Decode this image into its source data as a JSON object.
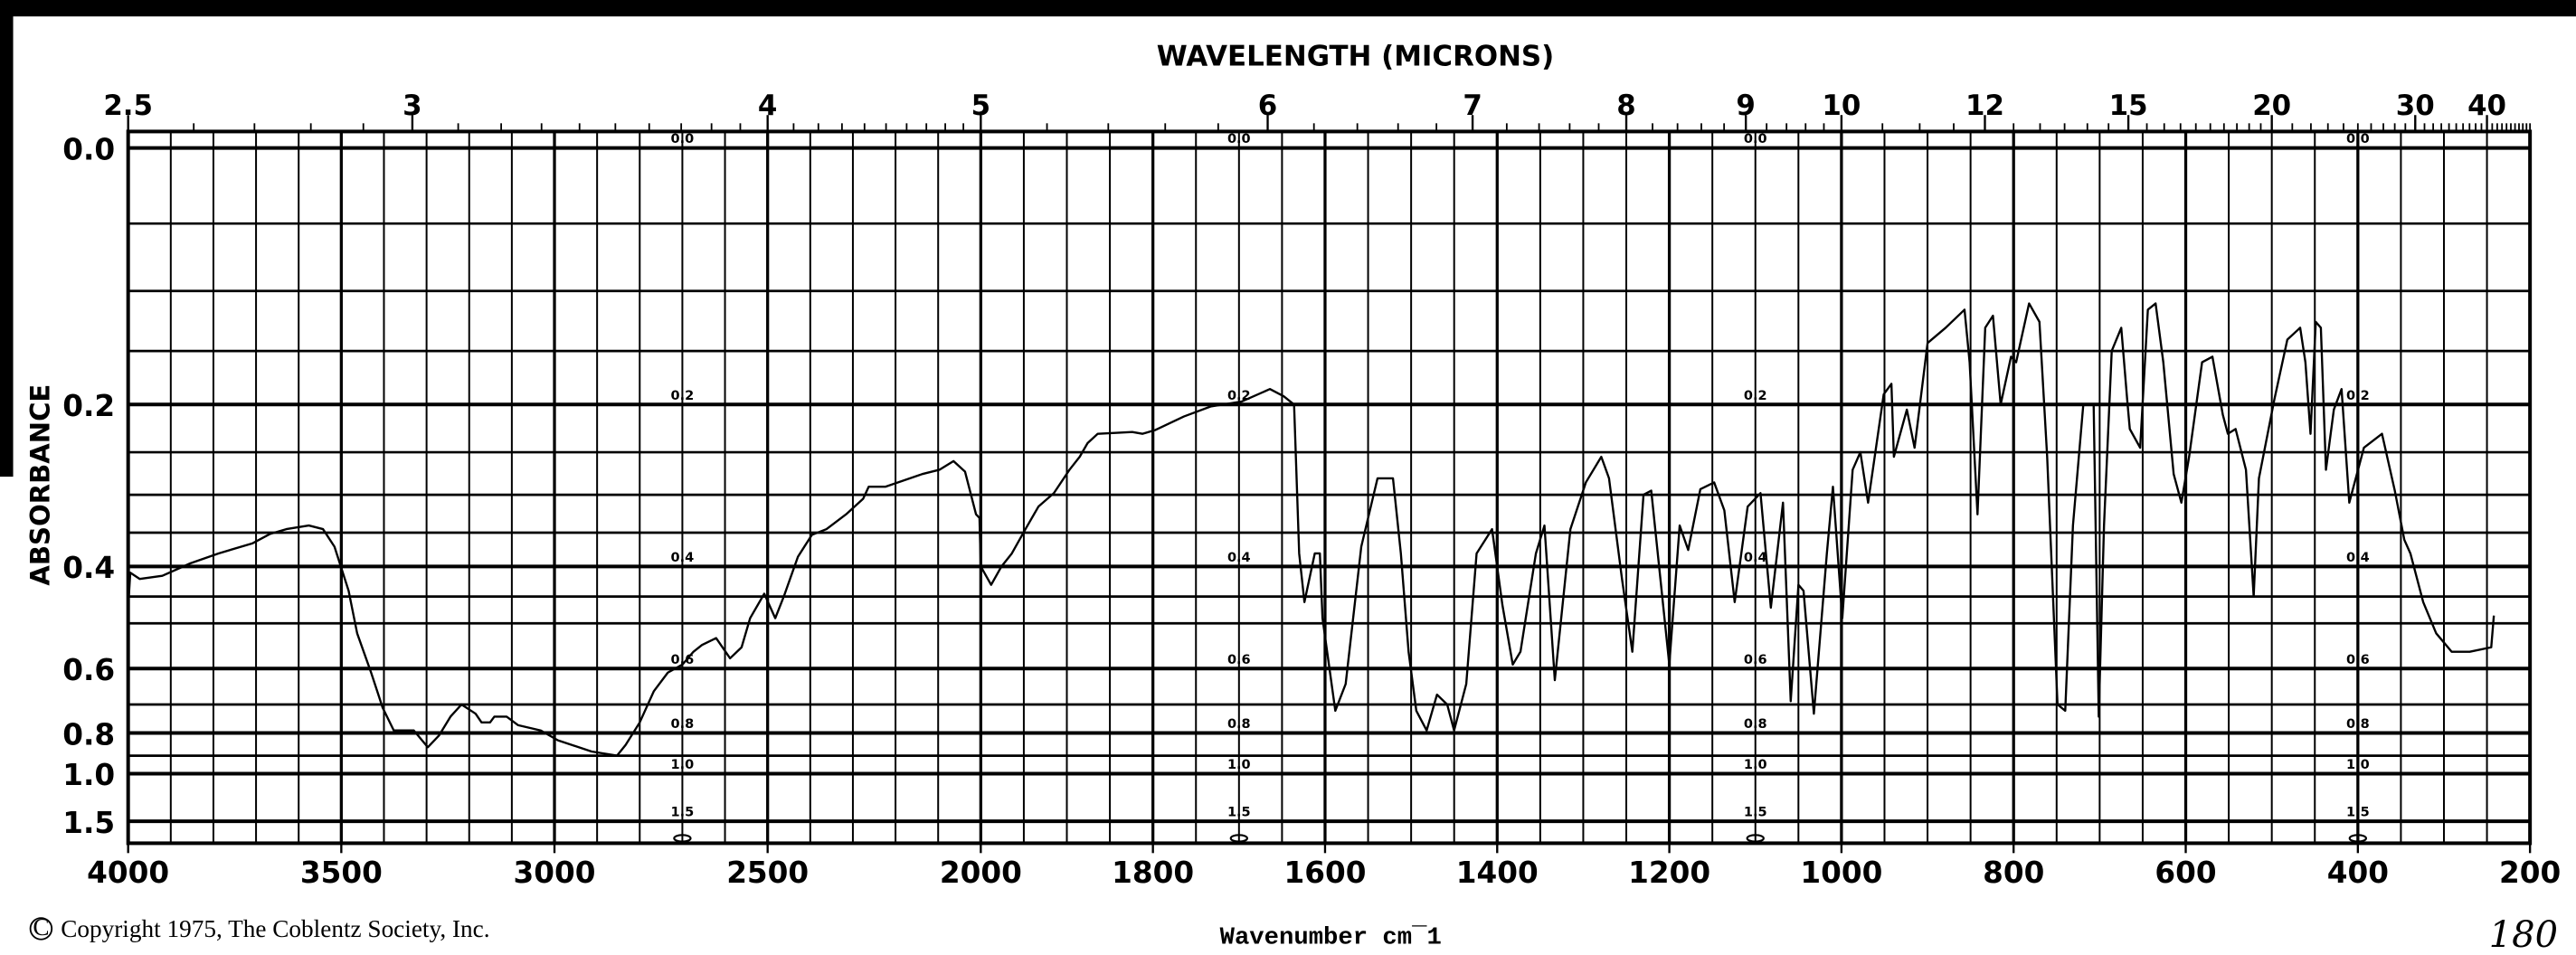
{
  "chart_data": {
    "type": "line",
    "title": "WAVELENGTH (MICRONS)",
    "xlabel": "Wavenumber cm¯1",
    "ylabel": "ABSORBANCE",
    "xlim": [
      4000,
      200
    ],
    "ylim": [
      0.0,
      1.5
    ],
    "grid": true,
    "x_ticks": [
      "4000",
      "3500",
      "3000",
      "2500",
      "2000",
      "1800",
      "1600",
      "1400",
      "1200",
      "1000",
      "800",
      "600",
      "400",
      "200"
    ],
    "y_ticks": [
      "0.0",
      "0.2",
      "0.4",
      "0.6",
      "0.8",
      "1.0",
      "1.5"
    ],
    "wavelength_ticks": [
      "2.5",
      "3",
      "4",
      "5",
      "6",
      "7",
      "8",
      "9",
      "10",
      "12",
      "15",
      "20",
      "30",
      "40"
    ],
    "inner_scale_labels": [
      "0.0",
      "0.2",
      "0.4",
      "0.6",
      "0.8",
      "1.0",
      "1.5"
    ],
    "series": [
      {
        "name": "spectrum",
        "color": "#000000",
        "points": [
          [
            4000,
            0.47
          ],
          [
            3995,
            0.41
          ],
          [
            3973,
            0.42
          ],
          [
            3920,
            0.415
          ],
          [
            3854,
            0.395
          ],
          [
            3788,
            0.38
          ],
          [
            3708,
            0.365
          ],
          [
            3668,
            0.352
          ],
          [
            3629,
            0.345
          ],
          [
            3576,
            0.34
          ],
          [
            3543,
            0.345
          ],
          [
            3516,
            0.37
          ],
          [
            3483,
            0.44
          ],
          [
            3463,
            0.52
          ],
          [
            3430,
            0.61
          ],
          [
            3403,
            0.71
          ],
          [
            3377,
            0.79
          ],
          [
            3330,
            0.79
          ],
          [
            3297,
            0.86
          ],
          [
            3271,
            0.81
          ],
          [
            3244,
            0.74
          ],
          [
            3218,
            0.7
          ],
          [
            3185,
            0.73
          ],
          [
            3171,
            0.76
          ],
          [
            3151,
            0.76
          ],
          [
            3141,
            0.74
          ],
          [
            3112,
            0.74
          ],
          [
            3085,
            0.77
          ],
          [
            3032,
            0.79
          ],
          [
            2992,
            0.83
          ],
          [
            2913,
            0.88
          ],
          [
            2853,
            0.9
          ],
          [
            2833,
            0.85
          ],
          [
            2800,
            0.76
          ],
          [
            2767,
            0.66
          ],
          [
            2734,
            0.61
          ],
          [
            2700,
            0.59
          ],
          [
            2674,
            0.56
          ],
          [
            2654,
            0.545
          ],
          [
            2621,
            0.53
          ],
          [
            2588,
            0.575
          ],
          [
            2561,
            0.55
          ],
          [
            2541,
            0.49
          ],
          [
            2508,
            0.445
          ],
          [
            2482,
            0.49
          ],
          [
            2462,
            0.45
          ],
          [
            2429,
            0.385
          ],
          [
            2396,
            0.353
          ],
          [
            2362,
            0.345
          ],
          [
            2316,
            0.325
          ],
          [
            2276,
            0.305
          ],
          [
            2263,
            0.29
          ],
          [
            2223,
            0.29
          ],
          [
            2183,
            0.283
          ],
          [
            2137,
            0.275
          ],
          [
            2097,
            0.27
          ],
          [
            2064,
            0.26
          ],
          [
            2037,
            0.272
          ],
          [
            2011,
            0.325
          ],
          [
            2003,
            0.33
          ],
          [
            2000,
            0.4
          ],
          [
            1988,
            0.43
          ],
          [
            1976,
            0.4
          ],
          [
            1964,
            0.38
          ],
          [
            1948,
            0.345
          ],
          [
            1933,
            0.315
          ],
          [
            1915,
            0.298
          ],
          [
            1897,
            0.27
          ],
          [
            1885,
            0.255
          ],
          [
            1876,
            0.24
          ],
          [
            1864,
            0.23
          ],
          [
            1824,
            0.228
          ],
          [
            1812,
            0.23
          ],
          [
            1797,
            0.226
          ],
          [
            1764,
            0.212
          ],
          [
            1733,
            0.202
          ],
          [
            1697,
            0.197
          ],
          [
            1664,
            0.185
          ],
          [
            1648,
            0.192
          ],
          [
            1636,
            0.2
          ],
          [
            1630,
            0.38
          ],
          [
            1624,
            0.46
          ],
          [
            1612,
            0.38
          ],
          [
            1606,
            0.38
          ],
          [
            1603,
            0.49
          ],
          [
            1588,
            0.72
          ],
          [
            1576,
            0.64
          ],
          [
            1558,
            0.37
          ],
          [
            1539,
            0.28
          ],
          [
            1521,
            0.28
          ],
          [
            1512,
            0.38
          ],
          [
            1503,
            0.56
          ],
          [
            1494,
            0.72
          ],
          [
            1482,
            0.79
          ],
          [
            1470,
            0.67
          ],
          [
            1458,
            0.7
          ],
          [
            1450,
            0.79
          ],
          [
            1436,
            0.64
          ],
          [
            1424,
            0.38
          ],
          [
            1406,
            0.345
          ],
          [
            1394,
            0.465
          ],
          [
            1382,
            0.59
          ],
          [
            1373,
            0.56
          ],
          [
            1355,
            0.38
          ],
          [
            1345,
            0.34
          ],
          [
            1333,
            0.63
          ],
          [
            1315,
            0.345
          ],
          [
            1297,
            0.285
          ],
          [
            1279,
            0.255
          ],
          [
            1270,
            0.28
          ],
          [
            1255,
            0.42
          ],
          [
            1243,
            0.56
          ],
          [
            1230,
            0.3
          ],
          [
            1221,
            0.295
          ],
          [
            1200,
            0.59
          ],
          [
            1188,
            0.34
          ],
          [
            1178,
            0.375
          ],
          [
            1164,
            0.293
          ],
          [
            1148,
            0.285
          ],
          [
            1136,
            0.32
          ],
          [
            1124,
            0.46
          ],
          [
            1109,
            0.315
          ],
          [
            1094,
            0.298
          ],
          [
            1082,
            0.47
          ],
          [
            1068,
            0.31
          ],
          [
            1059,
            0.69
          ],
          [
            1050,
            0.43
          ],
          [
            1044,
            0.44
          ],
          [
            1032,
            0.73
          ],
          [
            1017,
            0.38
          ],
          [
            1010,
            0.29
          ],
          [
            999,
            0.49
          ],
          [
            987,
            0.27
          ],
          [
            978,
            0.25
          ],
          [
            969,
            0.31
          ],
          [
            951,
            0.19
          ],
          [
            942,
            0.18
          ],
          [
            939,
            0.255
          ],
          [
            924,
            0.205
          ],
          [
            915,
            0.245
          ],
          [
            900,
            0.143
          ],
          [
            879,
            0.13
          ],
          [
            857,
            0.115
          ],
          [
            851,
            0.16
          ],
          [
            842,
            0.325
          ],
          [
            833,
            0.13
          ],
          [
            824,
            0.12
          ],
          [
            815,
            0.2
          ],
          [
            803,
            0.155
          ],
          [
            797,
            0.16
          ],
          [
            782,
            0.11
          ],
          [
            770,
            0.125
          ],
          [
            761,
            0.255
          ],
          [
            749,
            0.7
          ],
          [
            740,
            0.72
          ],
          [
            731,
            0.34
          ],
          [
            719,
            0.2
          ],
          [
            707,
            0.2
          ],
          [
            701,
            0.74
          ],
          [
            695,
            0.34
          ],
          [
            686,
            0.15
          ],
          [
            675,
            0.13
          ],
          [
            668,
            0.195
          ],
          [
            665,
            0.225
          ],
          [
            653,
            0.245
          ],
          [
            644,
            0.115
          ],
          [
            635,
            0.11
          ],
          [
            626,
            0.16
          ],
          [
            614,
            0.275
          ],
          [
            605,
            0.31
          ],
          [
            596,
            0.255
          ],
          [
            581,
            0.16
          ],
          [
            569,
            0.155
          ],
          [
            557,
            0.21
          ],
          [
            551,
            0.23
          ],
          [
            542,
            0.225
          ],
          [
            530,
            0.27
          ],
          [
            521,
            0.45
          ],
          [
            515,
            0.28
          ],
          [
            497,
            0.195
          ],
          [
            482,
            0.14
          ],
          [
            467,
            0.13
          ],
          [
            461,
            0.16
          ],
          [
            455,
            0.23
          ],
          [
            449,
            0.125
          ],
          [
            443,
            0.13
          ],
          [
            437,
            0.27
          ],
          [
            428,
            0.205
          ],
          [
            419,
            0.185
          ],
          [
            410,
            0.31
          ],
          [
            393,
            0.245
          ],
          [
            372,
            0.23
          ],
          [
            357,
            0.295
          ],
          [
            346,
            0.36
          ],
          [
            339,
            0.38
          ],
          [
            324,
            0.46
          ],
          [
            309,
            0.52
          ],
          [
            291,
            0.56
          ],
          [
            270,
            0.56
          ],
          [
            245,
            0.55
          ],
          [
            242,
            0.485
          ]
        ]
      }
    ]
  },
  "footer": {
    "copyright": "Copyright 1975, The Coblentz Society, Inc.",
    "handwritten_note": "180"
  },
  "icons": {
    "copyright": "copyright-icon"
  }
}
